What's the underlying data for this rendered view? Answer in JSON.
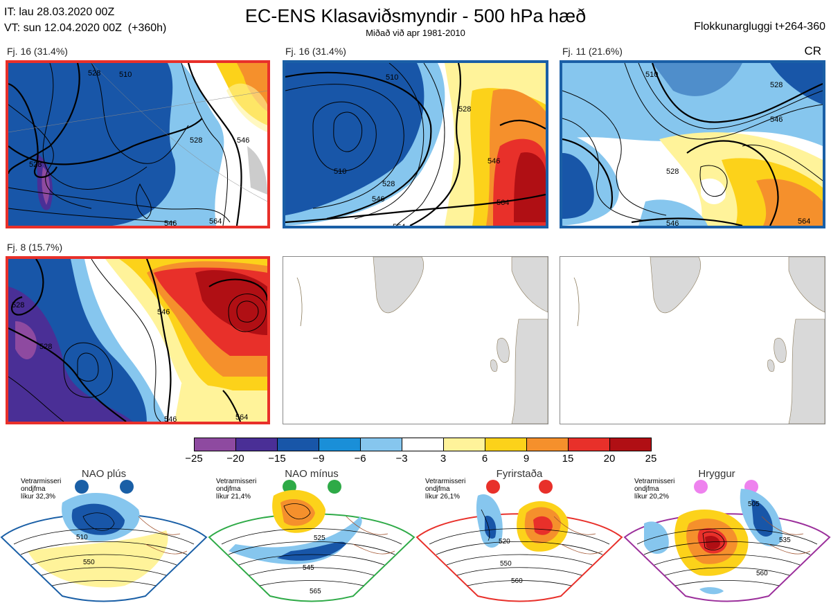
{
  "header": {
    "init_time": "IT: lau 28.03.2020 00Z",
    "valid_time": "VT: sun 12.04.2020 00Z  (+360h)",
    "title": "EC-ENS Klasaviðsmyndir - 500 hPa hæð",
    "subtitle": "Miðað við apr 1981-2010",
    "window": "Flokkunargluggi t+264-360",
    "corner_code": "CR"
  },
  "panels": [
    {
      "label": "Fj. 16 (31.4%)",
      "frame_color": "#e8302a",
      "contours": [
        "510",
        "528",
        "528",
        "528",
        "546",
        "546",
        "564"
      ]
    },
    {
      "label": "Fj. 16 (31.4%)",
      "frame_color": "#1a5fa6",
      "contours": [
        "510",
        "510",
        "528",
        "528",
        "546",
        "546",
        "564",
        "564"
      ]
    },
    {
      "label": "Fj. 11 (21.6%)",
      "frame_color": "#1a5fa6",
      "contours": [
        "510",
        "528",
        "528",
        "546",
        "546",
        "564"
      ]
    },
    {
      "label": "Fj. 8 (15.7%)",
      "frame_color": "#e8302a",
      "contours": [
        "528",
        "528",
        "546",
        "546",
        "564"
      ]
    },
    {
      "label": "",
      "frame_color": "#888888",
      "contours": []
    },
    {
      "label": "",
      "frame_color": "#888888",
      "contours": []
    }
  ],
  "colorbar": {
    "colors": [
      "#8e4aa0",
      "#4a2f96",
      "#1856a8",
      "#1a8fd8",
      "#86c6ee",
      "#ffffff",
      "#fff39a",
      "#fcd21a",
      "#f5902c",
      "#e8302a",
      "#b00f14"
    ],
    "ticks": [
      "−25",
      "−20",
      "−15",
      "−9",
      "−6",
      "−3",
      "3",
      "6",
      "9",
      "15",
      "20",
      "25"
    ]
  },
  "regimes": [
    {
      "name": "NAO plús",
      "note_lines": [
        "Vetrarmisseri",
        "ondjfma",
        "líkur 32,3%"
      ],
      "color": "#1a5fa6",
      "contours": [
        "510",
        "550"
      ]
    },
    {
      "name": "NAO mínus",
      "note_lines": [
        "Vetrarmisseri",
        "ondjfma",
        "líkur 21,4%"
      ],
      "color": "#2eaa47",
      "contours": [
        "525",
        "545",
        "565"
      ]
    },
    {
      "name": "Fyrirstaða",
      "note_lines": [
        "Vetrarmisseri",
        "ondjfma",
        "líkur 26,1%"
      ],
      "color": "#e8302a",
      "contours": [
        "520",
        "550",
        "560"
      ]
    },
    {
      "name": "Hryggur",
      "note_lines": [
        "Vetrarmisseri",
        "ondjfma",
        "líkur 20,2%"
      ],
      "color": "#9b2f9b",
      "contours": [
        "505",
        "535",
        "560"
      ]
    }
  ]
}
